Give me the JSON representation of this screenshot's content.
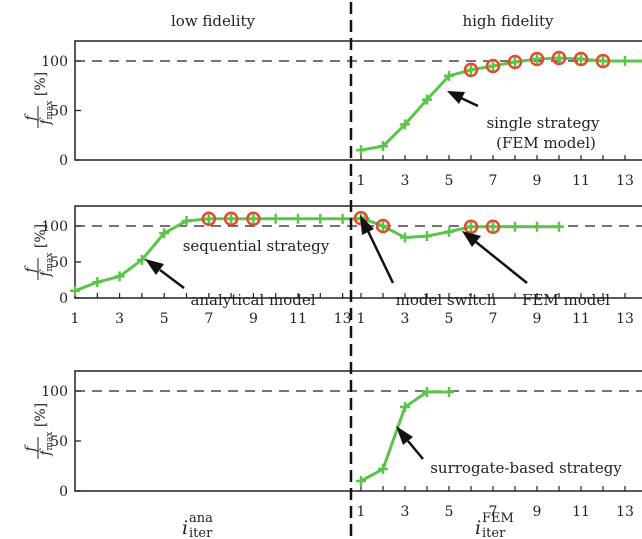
{
  "colors": {
    "series": "#5cc44a",
    "highlight": "#e64a2a",
    "axis": "#222222",
    "dashed": "#222222"
  },
  "sections": {
    "left": "low fidelity",
    "right": "high fidelity"
  },
  "ylabel": {
    "numerator": "f",
    "denominator": "f",
    "denominator_sub": "max",
    "unit": "[%]"
  },
  "xlabel_left": {
    "base": "i",
    "sup": "ana",
    "sub": "iter"
  },
  "xlabel_right": {
    "base": "i",
    "sup": "FEM",
    "sub": "iter"
  },
  "chart_data": [
    {
      "type": "line",
      "panel": "top",
      "ylim": [
        0,
        120
      ],
      "yticks": [
        0,
        50,
        100
      ],
      "reference_line": 100,
      "xticks_right": [
        1,
        3,
        5,
        7,
        9,
        11,
        13
      ],
      "series": [
        {
          "segment": "high fidelity",
          "x": [
            1,
            2,
            3,
            4,
            5,
            6,
            7,
            8,
            9,
            10,
            11,
            12,
            13,
            14
          ],
          "y": [
            10,
            14,
            36,
            61,
            85,
            91,
            95,
            99,
            102,
            103,
            102,
            100,
            100,
            100
          ],
          "highlighted_x": [
            6,
            7,
            8,
            9,
            10,
            11,
            12
          ]
        }
      ],
      "annotations": [
        {
          "text": "single strategy",
          "text2": "(FEM model)"
        }
      ]
    },
    {
      "type": "line",
      "panel": "middle",
      "ylim": [
        0,
        120
      ],
      "yticks": [
        0,
        50,
        100
      ],
      "reference_line": 100,
      "xticks_left": [
        1,
        3,
        5,
        7,
        9,
        11,
        13
      ],
      "xticks_right": [
        1,
        3,
        5,
        7,
        9,
        11,
        13
      ],
      "series": [
        {
          "segment": "low fidelity",
          "x": [
            1,
            2,
            3,
            4,
            5,
            6,
            7,
            8,
            9,
            10,
            11,
            12,
            13,
            14
          ],
          "y": [
            10,
            22,
            30,
            53,
            90,
            107,
            110,
            110,
            110,
            110,
            110,
            110,
            110,
            110
          ],
          "highlighted_x": [
            7,
            8,
            9
          ]
        },
        {
          "segment": "high fidelity",
          "x": [
            1,
            2,
            3,
            4,
            5,
            6,
            7,
            8,
            9,
            10
          ],
          "y": [
            111,
            100,
            84,
            86,
            92,
            99,
            99,
            99,
            99,
            99
          ],
          "highlighted_x": [
            1,
            2,
            6,
            7
          ]
        }
      ],
      "annotations": [
        {
          "text": "sequential strategy"
        },
        {
          "text": "analytical model"
        },
        {
          "text": "model switch"
        },
        {
          "text": "FEM model"
        }
      ]
    },
    {
      "type": "line",
      "panel": "bottom",
      "ylim": [
        0,
        120
      ],
      "yticks": [
        0,
        50,
        100
      ],
      "reference_line": 100,
      "xticks_right": [
        1,
        3,
        5,
        7,
        9,
        11,
        13
      ],
      "series": [
        {
          "segment": "high fidelity",
          "x": [
            1,
            2,
            3,
            4,
            5
          ],
          "y": [
            10,
            22,
            84,
            99,
            99
          ],
          "highlighted_x": []
        }
      ],
      "annotations": [
        {
          "text": "surrogate-based strategy"
        }
      ]
    }
  ]
}
